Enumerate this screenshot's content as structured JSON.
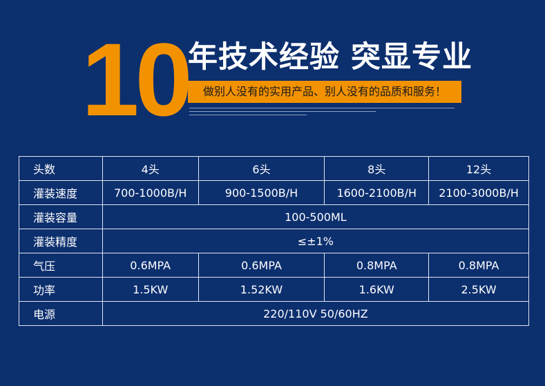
{
  "banner": {
    "number": "10",
    "headline": "年技术经验 突显专业",
    "slogan": "做别人没有的实用产品、别人没有的品质和服务！"
  },
  "colors": {
    "background": "#0c2f6e",
    "accent": "#f39200"
  },
  "table": {
    "rows": [
      {
        "label": "头数",
        "cells": [
          "4头",
          "6头",
          "8头",
          "12头"
        ]
      },
      {
        "label": "灌装速度",
        "cells": [
          "700-1000B/H",
          "900-1500B/H",
          "1600-2100B/H",
          "2100-3000B/H"
        ]
      },
      {
        "label": "灌装容量",
        "span": "100-500ML"
      },
      {
        "label": "灌装精度",
        "span": "≤±1%"
      },
      {
        "label": "气压",
        "cells": [
          "0.6MPA",
          "0.6MPA",
          "0.8MPA",
          "0.8MPA"
        ]
      },
      {
        "label": "功率",
        "cells": [
          "1.5KW",
          "1.52KW",
          "1.6KW",
          "2.5KW"
        ]
      },
      {
        "label": "电源",
        "span": "220/110V 50/60HZ"
      }
    ]
  }
}
